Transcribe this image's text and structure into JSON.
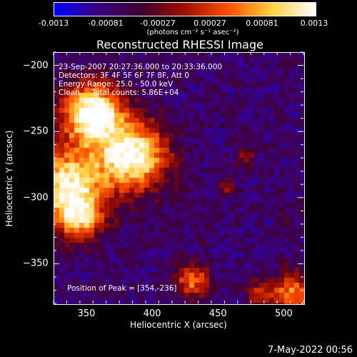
{
  "colorbar": {
    "ticks": [
      "-0.0013",
      "-0.00081",
      "-0.00027",
      "0.00027",
      "0.00081",
      "0.0013"
    ],
    "unit": "(photons cm⁻² s⁻¹ asec⁻²)",
    "colors": [
      "#0000ff",
      "#3a0080",
      "#400030",
      "#a01000",
      "#ff5000",
      "#ffd040",
      "#ffffff"
    ]
  },
  "chart_data": {
    "type": "heatmap",
    "title": "Reconstructed RHESSI Image",
    "xlabel": "Heliocentric X (arcsec)",
    "ylabel": "Heliocentric Y (arcsec)",
    "xlim": [
      325,
      515
    ],
    "ylim": [
      -380,
      -190
    ],
    "x_ticks": [
      350,
      400,
      450,
      500
    ],
    "y_ticks": [
      -200,
      -250,
      -300,
      -350
    ],
    "x_tick_labels": [
      "350",
      "400",
      "450",
      "500"
    ],
    "y_tick_labels": [
      "−200",
      "−250",
      "−300",
      "−350"
    ],
    "colorbar_range": [
      -0.0013,
      0.0013
    ],
    "sources": [
      {
        "x": 354,
        "y": -236,
        "sigma": 16,
        "amp": 1.0
      },
      {
        "x": 385,
        "y": -268,
        "sigma": 18,
        "amp": 0.95
      },
      {
        "x": 335,
        "y": -290,
        "sigma": 20,
        "amp": 0.85
      },
      {
        "x": 345,
        "y": -315,
        "sigma": 12,
        "amp": 0.55
      },
      {
        "x": 430,
        "y": -362,
        "sigma": 9,
        "amp": 0.55
      },
      {
        "x": 505,
        "y": -372,
        "sigma": 11,
        "amp": 0.6
      },
      {
        "x": 480,
        "y": -372,
        "sigma": 7,
        "amp": 0.35
      },
      {
        "x": 470,
        "y": -270,
        "sigma": 5,
        "amp": 0.3
      },
      {
        "x": 455,
        "y": -292,
        "sigma": 5,
        "amp": 0.25
      },
      {
        "x": 500,
        "y": -315,
        "sigma": 4,
        "amp": 0.2
      }
    ],
    "peak_position": [
      354,
      -236
    ]
  },
  "overlay": {
    "time_range": "23-Sep-2007 20:27:36.000 to 20:33:36.000",
    "detectors": "Detectors: 3F 4F 5F 6F 7F 8F, Att 0",
    "energy": "Energy Range: 25.0 - 50.0 keV",
    "method": "Clean     Total counts: 5.86E+04",
    "peak": "Position of Peak = [354,-236]"
  },
  "footer": "7-May-2022 00:56"
}
